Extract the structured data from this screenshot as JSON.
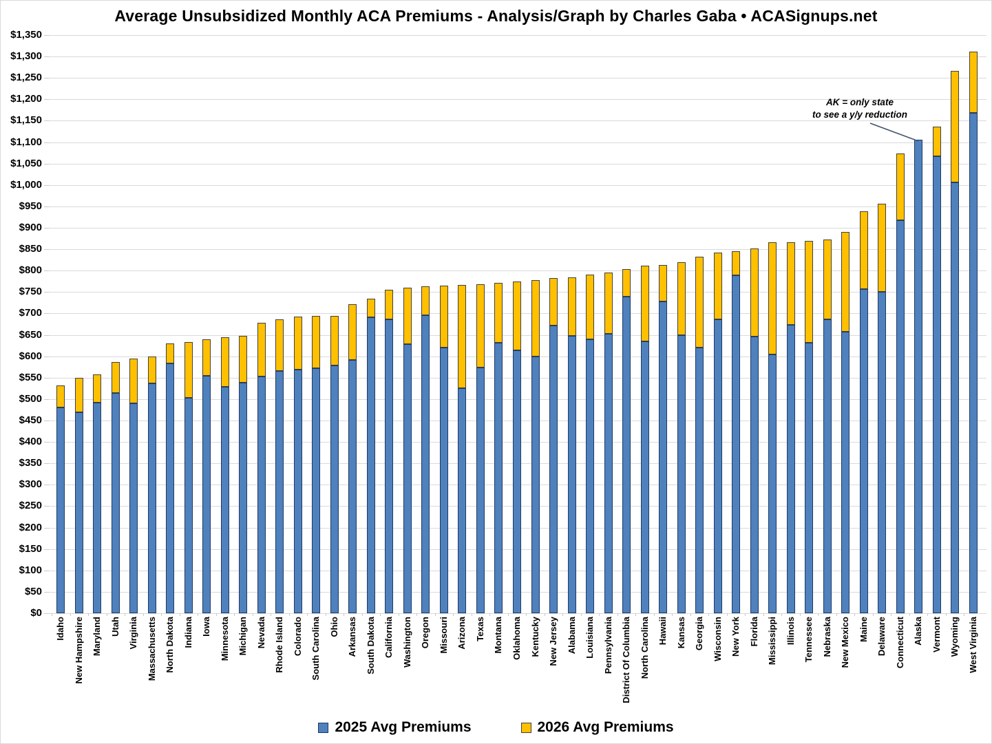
{
  "title": "Average Unsubsidized Monthly ACA Premiums - Analysis/Graph by Charles Gaba • ACASignups.net",
  "annotation": {
    "line1": "AK = only state",
    "line2": "to see a y/y reduction"
  },
  "legend": [
    {
      "label": "2025 Avg Premiums",
      "color": "#4F81BD",
      "border": "#1F3864"
    },
    {
      "label": "2026 Avg Premiums",
      "color": "#FFC000",
      "border": "#404040"
    }
  ],
  "colors": {
    "series_2025": "#4F81BD",
    "series_2026": "#FFC000",
    "bar_border_2025": "#1F3864",
    "bar_border_2026": "#404040",
    "gridline": "#d9d9d9",
    "text": "#000000",
    "leader_line": "#44546A"
  },
  "axis": {
    "y_min": 0,
    "y_max": 1350,
    "y_step": 50,
    "y_tick_prefix": "$"
  },
  "chart_data": {
    "type": "bar",
    "subtype": "overlay-stacked (blue = 2025 value; yellow cap spans from 2025 value up to 2026 value; no cap drawn when 2026 < 2025)",
    "title": "Average Unsubsidized Monthly ACA Premiums - Analysis/Graph by Charles Gaba • ACASignups.net",
    "xlabel": "",
    "ylabel": "",
    "ylim": [
      0,
      1350
    ],
    "grid": true,
    "legend_position": "bottom",
    "categories": [
      "Idaho",
      "New Hampshire",
      "Maryland",
      "Utah",
      "Virginia",
      "Massachusetts",
      "North Dakota",
      "Indiana",
      "Iowa",
      "Minnesota",
      "Michigan",
      "Nevada",
      "Rhode Island",
      "Colorado",
      "South Carolina",
      "Ohio",
      "Arkansas",
      "South Dakota",
      "California",
      "Washington",
      "Oregon",
      "Missouri",
      "Arizona",
      "Texas",
      "Montana",
      "Oklahoma",
      "Kentucky",
      "New Jersey",
      "Alabama",
      "Louisiana",
      "Pennsylvania",
      "District Of Columbia",
      "North Carolina",
      "Hawaii",
      "Kansas",
      "Georgia",
      "Wisconsin",
      "New York",
      "Florida",
      "Mississippi",
      "Illinois",
      "Tennessee",
      "Nebraska",
      "New Mexico",
      "Maine",
      "Delaware",
      "Connecticut",
      "Alaska",
      "Vermont",
      "Wyoming",
      "West Virginia"
    ],
    "series": [
      {
        "name": "2025 Avg Premiums",
        "color": "#4F81BD",
        "values": [
          481,
          469,
          492,
          515,
          490,
          536,
          584,
          503,
          555,
          528,
          539,
          553,
          566,
          569,
          572,
          578,
          591,
          691,
          686,
          629,
          696,
          621,
          525,
          573,
          631,
          614,
          600,
          672,
          648,
          640,
          653,
          739,
          635,
          728,
          649,
          620,
          686,
          789,
          646,
          604,
          674,
          632,
          687,
          657,
          757,
          750,
          918,
          1105,
          1067,
          1006,
          1169
        ]
      },
      {
        "name": "2026 Avg Premiums",
        "color": "#FFC000",
        "values": [
          532,
          550,
          558,
          587,
          595,
          599,
          630,
          634,
          640,
          645,
          647,
          678,
          687,
          692,
          694,
          695,
          722,
          734,
          755,
          760,
          763,
          765,
          766,
          769,
          772,
          775,
          778,
          783,
          785,
          790,
          795,
          803,
          811,
          813,
          820,
          833,
          842,
          845,
          851,
          866,
          867,
          870,
          873,
          890,
          939,
          956,
          1073,
          1100,
          1137,
          1266,
          1312
        ]
      }
    ],
    "annotations": [
      {
        "text": "AK = only state to see a y/y reduction",
        "target_category": "Alaska"
      }
    ]
  }
}
